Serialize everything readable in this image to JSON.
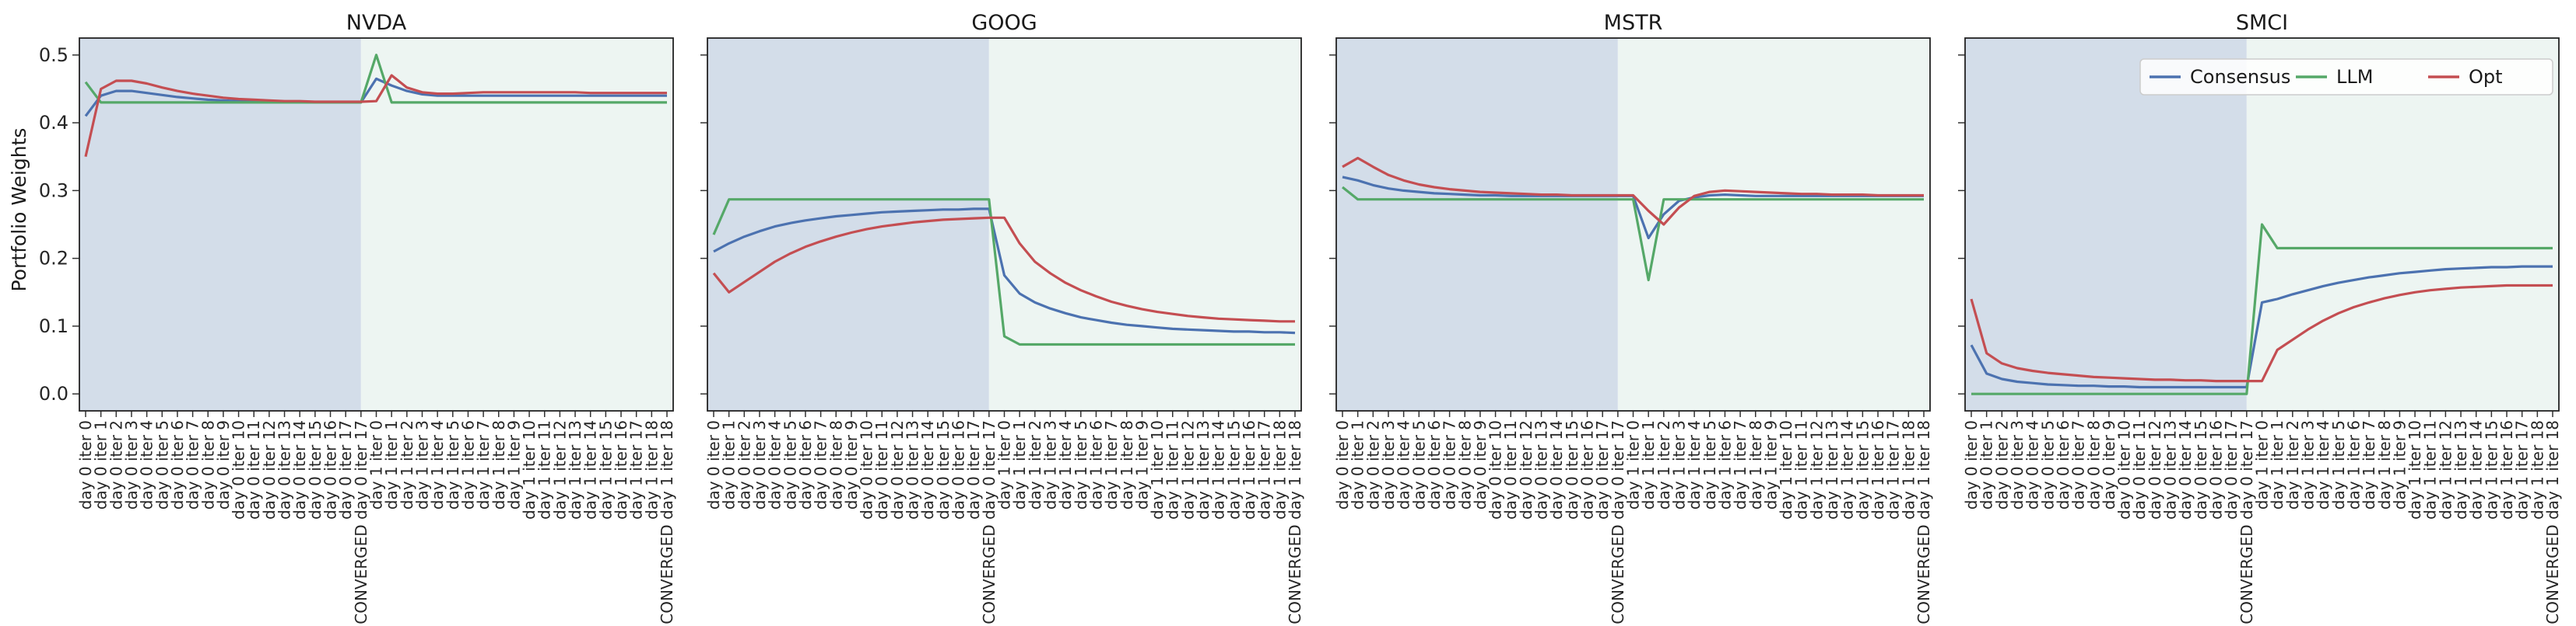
{
  "chart_data": [
    {
      "type": "line",
      "title": "NVDA",
      "ylabel": "Portfolio Weights",
      "ylim": [
        -0.025,
        0.525
      ],
      "yticks": [
        "0.0",
        "0.1",
        "0.2",
        "0.3",
        "0.4",
        "0.5"
      ],
      "phase_split_index": 18,
      "phase_colors": [
        "#d3dde9",
        "#edf5f2"
      ],
      "categories": [
        "day 0 iter 0",
        "day 0 iter 1",
        "day 0 iter 2",
        "day 0 iter 3",
        "day 0 iter 4",
        "day 0 iter 5",
        "day 0 iter 6",
        "day 0 iter 7",
        "day 0 iter 8",
        "day 0 iter 9",
        "day 0 iter 10",
        "day 0 iter 11",
        "day 0 iter 12",
        "day 0 iter 13",
        "day 0 iter 14",
        "day 0 iter 15",
        "day 0 iter 16",
        "day 0 iter 17",
        "CONVERGED day 0 iter 17",
        "day 1 iter 0",
        "day 1 iter 1",
        "day 1 iter 2",
        "day 1 iter 3",
        "day 1 iter 4",
        "day 1 iter 5",
        "day 1 iter 6",
        "day 1 iter 7",
        "day 1 iter 8",
        "day 1 iter 9",
        "day 1 iter 10",
        "day 1 iter 11",
        "day 1 iter 12",
        "day 1 iter 13",
        "day 1 iter 14",
        "day 1 iter 15",
        "day 1 iter 16",
        "day 1 iter 17",
        "day 1 iter 18",
        "CONVERGED day 1 iter 18"
      ],
      "series": [
        {
          "name": "Consensus",
          "color": "#4c72b0",
          "values": [
            0.41,
            0.44,
            0.447,
            0.447,
            0.444,
            0.441,
            0.438,
            0.436,
            0.434,
            0.433,
            0.432,
            0.431,
            0.431,
            0.43,
            0.43,
            0.43,
            0.43,
            0.43,
            0.43,
            0.465,
            0.455,
            0.447,
            0.442,
            0.44,
            0.44,
            0.44,
            0.44,
            0.44,
            0.44,
            0.44,
            0.44,
            0.44,
            0.44,
            0.44,
            0.44,
            0.44,
            0.44,
            0.44,
            0.44
          ]
        },
        {
          "name": "LLM",
          "color": "#55a868",
          "values": [
            0.46,
            0.43,
            0.43,
            0.43,
            0.43,
            0.43,
            0.43,
            0.43,
            0.43,
            0.43,
            0.43,
            0.43,
            0.43,
            0.43,
            0.43,
            0.43,
            0.43,
            0.43,
            0.43,
            0.5,
            0.43,
            0.43,
            0.43,
            0.43,
            0.43,
            0.43,
            0.43,
            0.43,
            0.43,
            0.43,
            0.43,
            0.43,
            0.43,
            0.43,
            0.43,
            0.43,
            0.43,
            0.43,
            0.43
          ]
        },
        {
          "name": "Opt",
          "color": "#c44e52",
          "values": [
            0.35,
            0.45,
            0.462,
            0.462,
            0.458,
            0.452,
            0.447,
            0.443,
            0.44,
            0.437,
            0.435,
            0.434,
            0.433,
            0.432,
            0.432,
            0.431,
            0.431,
            0.431,
            0.431,
            0.432,
            0.47,
            0.452,
            0.445,
            0.443,
            0.443,
            0.444,
            0.445,
            0.445,
            0.445,
            0.445,
            0.445,
            0.445,
            0.445,
            0.444,
            0.444,
            0.444,
            0.444,
            0.444,
            0.444
          ]
        }
      ]
    },
    {
      "type": "line",
      "title": "GOOG",
      "ylim": [
        -0.025,
        0.525
      ],
      "phase_split_index": 18,
      "phase_colors": [
        "#d3dde9",
        "#edf5f2"
      ],
      "categories": [
        "day 0 iter 0",
        "day 0 iter 1",
        "day 0 iter 2",
        "day 0 iter 3",
        "day 0 iter 4",
        "day 0 iter 5",
        "day 0 iter 6",
        "day 0 iter 7",
        "day 0 iter 8",
        "day 0 iter 9",
        "day 0 iter 10",
        "day 0 iter 11",
        "day 0 iter 12",
        "day 0 iter 13",
        "day 0 iter 14",
        "day 0 iter 15",
        "day 0 iter 16",
        "day 0 iter 17",
        "CONVERGED day 0 iter 17",
        "day 1 iter 0",
        "day 1 iter 1",
        "day 1 iter 2",
        "day 1 iter 3",
        "day 1 iter 4",
        "day 1 iter 5",
        "day 1 iter 6",
        "day 1 iter 7",
        "day 1 iter 8",
        "day 1 iter 9",
        "day 1 iter 10",
        "day 1 iter 11",
        "day 1 iter 12",
        "day 1 iter 13",
        "day 1 iter 14",
        "day 1 iter 15",
        "day 1 iter 16",
        "day 1 iter 17",
        "day 1 iter 18",
        "CONVERGED day 1 iter 18"
      ],
      "series": [
        {
          "name": "Consensus",
          "color": "#4c72b0",
          "values": [
            0.21,
            0.222,
            0.232,
            0.24,
            0.247,
            0.252,
            0.256,
            0.259,
            0.262,
            0.264,
            0.266,
            0.268,
            0.269,
            0.27,
            0.271,
            0.272,
            0.272,
            0.273,
            0.273,
            0.175,
            0.148,
            0.135,
            0.126,
            0.119,
            0.113,
            0.109,
            0.105,
            0.102,
            0.1,
            0.098,
            0.096,
            0.095,
            0.094,
            0.093,
            0.092,
            0.092,
            0.091,
            0.091,
            0.09
          ]
        },
        {
          "name": "LLM",
          "color": "#55a868",
          "values": [
            0.235,
            0.287,
            0.287,
            0.287,
            0.287,
            0.287,
            0.287,
            0.287,
            0.287,
            0.287,
            0.287,
            0.287,
            0.287,
            0.287,
            0.287,
            0.287,
            0.287,
            0.287,
            0.287,
            0.085,
            0.073,
            0.073,
            0.073,
            0.073,
            0.073,
            0.073,
            0.073,
            0.073,
            0.073,
            0.073,
            0.073,
            0.073,
            0.073,
            0.073,
            0.073,
            0.073,
            0.073,
            0.073,
            0.073
          ]
        },
        {
          "name": "Opt",
          "color": "#c44e52",
          "values": [
            0.178,
            0.15,
            0.165,
            0.18,
            0.195,
            0.207,
            0.217,
            0.225,
            0.232,
            0.238,
            0.243,
            0.247,
            0.25,
            0.253,
            0.255,
            0.257,
            0.258,
            0.259,
            0.26,
            0.26,
            0.222,
            0.195,
            0.178,
            0.164,
            0.153,
            0.144,
            0.136,
            0.13,
            0.125,
            0.121,
            0.118,
            0.115,
            0.113,
            0.111,
            0.11,
            0.109,
            0.108,
            0.107,
            0.107
          ]
        }
      ]
    },
    {
      "type": "line",
      "title": "MSTR",
      "ylim": [
        -0.025,
        0.525
      ],
      "phase_split_index": 18,
      "phase_colors": [
        "#d3dde9",
        "#edf5f2"
      ],
      "categories": [
        "day 0 iter 0",
        "day 0 iter 1",
        "day 0 iter 2",
        "day 0 iter 3",
        "day 0 iter 4",
        "day 0 iter 5",
        "day 0 iter 6",
        "day 0 iter 7",
        "day 0 iter 8",
        "day 0 iter 9",
        "day 0 iter 10",
        "day 0 iter 11",
        "day 0 iter 12",
        "day 0 iter 13",
        "day 0 iter 14",
        "day 0 iter 15",
        "day 0 iter 16",
        "day 0 iter 17",
        "CONVERGED day 0 iter 17",
        "day 1 iter 0",
        "day 1 iter 1",
        "day 1 iter 2",
        "day 1 iter 3",
        "day 1 iter 4",
        "day 1 iter 5",
        "day 1 iter 6",
        "day 1 iter 7",
        "day 1 iter 8",
        "day 1 iter 9",
        "day 1 iter 10",
        "day 1 iter 11",
        "day 1 iter 12",
        "day 1 iter 13",
        "day 1 iter 14",
        "day 1 iter 15",
        "day 1 iter 16",
        "day 1 iter 17",
        "day 1 iter 18",
        "CONVERGED day 1 iter 18"
      ],
      "series": [
        {
          "name": "Consensus",
          "color": "#4c72b0",
          "values": [
            0.32,
            0.315,
            0.308,
            0.303,
            0.3,
            0.298,
            0.296,
            0.295,
            0.294,
            0.293,
            0.293,
            0.292,
            0.292,
            0.292,
            0.292,
            0.292,
            0.292,
            0.292,
            0.292,
            0.292,
            0.23,
            0.265,
            0.285,
            0.29,
            0.293,
            0.294,
            0.293,
            0.292,
            0.292,
            0.292,
            0.292,
            0.292,
            0.292,
            0.292,
            0.292,
            0.292,
            0.292,
            0.292,
            0.292
          ]
        },
        {
          "name": "LLM",
          "color": "#55a868",
          "values": [
            0.305,
            0.287,
            0.287,
            0.287,
            0.287,
            0.287,
            0.287,
            0.287,
            0.287,
            0.287,
            0.287,
            0.287,
            0.287,
            0.287,
            0.287,
            0.287,
            0.287,
            0.287,
            0.287,
            0.287,
            0.168,
            0.287,
            0.287,
            0.287,
            0.287,
            0.287,
            0.287,
            0.287,
            0.287,
            0.287,
            0.287,
            0.287,
            0.287,
            0.287,
            0.287,
            0.287,
            0.287,
            0.287,
            0.287
          ]
        },
        {
          "name": "Opt",
          "color": "#c44e52",
          "values": [
            0.335,
            0.348,
            0.335,
            0.323,
            0.315,
            0.309,
            0.305,
            0.302,
            0.3,
            0.298,
            0.297,
            0.296,
            0.295,
            0.294,
            0.294,
            0.293,
            0.293,
            0.293,
            0.293,
            0.293,
            0.27,
            0.25,
            0.275,
            0.292,
            0.298,
            0.3,
            0.299,
            0.298,
            0.297,
            0.296,
            0.295,
            0.295,
            0.294,
            0.294,
            0.294,
            0.293,
            0.293,
            0.293,
            0.293
          ]
        }
      ]
    },
    {
      "type": "line",
      "title": "SMCI",
      "ylim": [
        -0.025,
        0.525
      ],
      "phase_split_index": 18,
      "phase_colors": [
        "#d3dde9",
        "#edf5f2"
      ],
      "legend": [
        "Consensus",
        "LLM",
        "Opt"
      ],
      "legend_position": "top-right",
      "categories": [
        "day 0 iter 0",
        "day 0 iter 1",
        "day 0 iter 2",
        "day 0 iter 3",
        "day 0 iter 4",
        "day 0 iter 5",
        "day 0 iter 6",
        "day 0 iter 7",
        "day 0 iter 8",
        "day 0 iter 9",
        "day 0 iter 10",
        "day 0 iter 11",
        "day 0 iter 12",
        "day 0 iter 13",
        "day 0 iter 14",
        "day 0 iter 15",
        "day 0 iter 16",
        "day 0 iter 17",
        "CONVERGED day 0 iter 17",
        "day 1 iter 0",
        "day 1 iter 1",
        "day 1 iter 2",
        "day 1 iter 3",
        "day 1 iter 4",
        "day 1 iter 5",
        "day 1 iter 6",
        "day 1 iter 7",
        "day 1 iter 8",
        "day 1 iter 9",
        "day 1 iter 10",
        "day 1 iter 11",
        "day 1 iter 12",
        "day 1 iter 13",
        "day 1 iter 14",
        "day 1 iter 15",
        "day 1 iter 16",
        "day 1 iter 17",
        "day 1 iter 18",
        "CONVERGED day 1 iter 18"
      ],
      "series": [
        {
          "name": "Consensus",
          "color": "#4c72b0",
          "values": [
            0.072,
            0.03,
            0.022,
            0.018,
            0.016,
            0.014,
            0.013,
            0.012,
            0.012,
            0.011,
            0.011,
            0.01,
            0.01,
            0.01,
            0.01,
            0.01,
            0.01,
            0.01,
            0.01,
            0.135,
            0.14,
            0.147,
            0.153,
            0.159,
            0.164,
            0.168,
            0.172,
            0.175,
            0.178,
            0.18,
            0.182,
            0.184,
            0.185,
            0.186,
            0.187,
            0.187,
            0.188,
            0.188,
            0.188
          ]
        },
        {
          "name": "LLM",
          "color": "#55a868",
          "values": [
            0.0,
            0.0,
            0.0,
            0.0,
            0.0,
            0.0,
            0.0,
            0.0,
            0.0,
            0.0,
            0.0,
            0.0,
            0.0,
            0.0,
            0.0,
            0.0,
            0.0,
            0.0,
            0.0,
            0.25,
            0.215,
            0.215,
            0.215,
            0.215,
            0.215,
            0.215,
            0.215,
            0.215,
            0.215,
            0.215,
            0.215,
            0.215,
            0.215,
            0.215,
            0.215,
            0.215,
            0.215,
            0.215,
            0.215
          ]
        },
        {
          "name": "Opt",
          "color": "#c44e52",
          "values": [
            0.14,
            0.06,
            0.045,
            0.038,
            0.034,
            0.031,
            0.029,
            0.027,
            0.025,
            0.024,
            0.023,
            0.022,
            0.021,
            0.021,
            0.02,
            0.02,
            0.019,
            0.019,
            0.019,
            0.019,
            0.065,
            0.08,
            0.095,
            0.108,
            0.119,
            0.128,
            0.135,
            0.141,
            0.146,
            0.15,
            0.153,
            0.155,
            0.157,
            0.158,
            0.159,
            0.16,
            0.16,
            0.16,
            0.16
          ]
        }
      ]
    }
  ]
}
